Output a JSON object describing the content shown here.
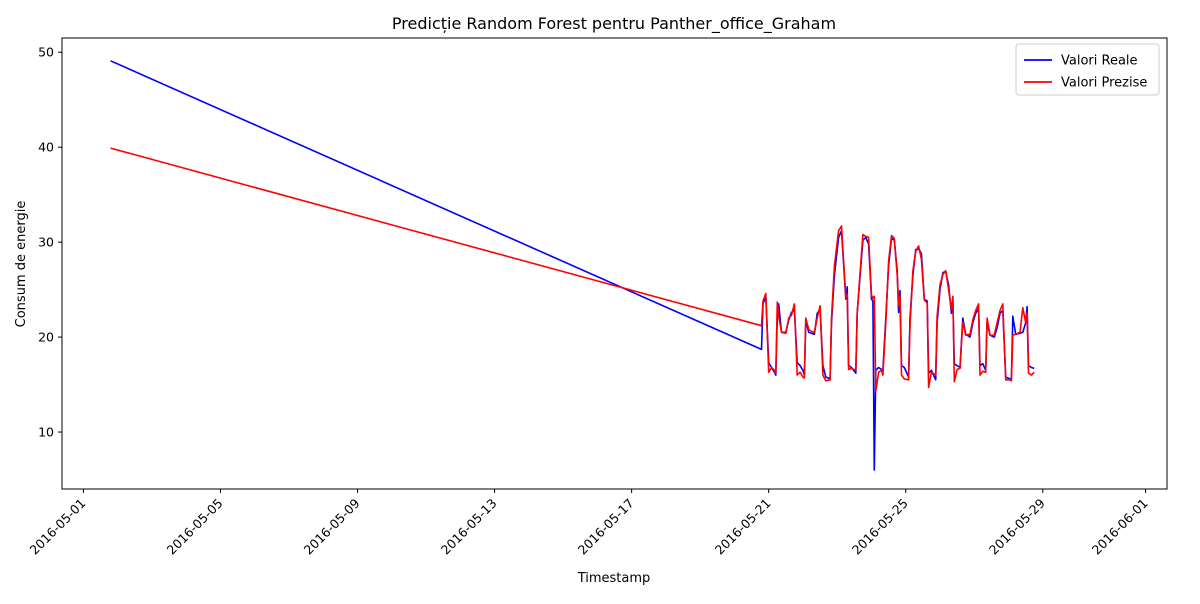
{
  "chart_data": {
    "type": "line",
    "title": "Predicție Random Forest pentru Panther_office_Graham",
    "xlabel": "Timestamp",
    "ylabel": "Consum de energie",
    "x_range": [
      "2016-04-30T09:00",
      "2016-06-01T15:00"
    ],
    "ylim": [
      4,
      51.5
    ],
    "yticks": [
      10,
      20,
      30,
      40,
      50
    ],
    "xticks": [
      "2016-05-01",
      "2016-05-05",
      "2016-05-09",
      "2016-05-13",
      "2016-05-17",
      "2016-05-21",
      "2016-05-25",
      "2016-05-29",
      "2016-06-01"
    ],
    "grid": false,
    "legend_position": "top-right",
    "series": [
      {
        "name": "Valori Reale",
        "color": "#0000ff",
        "points": [
          [
            "2016-05-01T19:00",
            49.1
          ],
          [
            "2016-05-20T19:00",
            18.7
          ],
          [
            "2016-05-20T20:00",
            23.5
          ],
          [
            "2016-05-20T22:00",
            24.3
          ],
          [
            "2016-05-21T00:00",
            17.3
          ],
          [
            "2016-05-21T02:00",
            16.8
          ],
          [
            "2016-05-21T04:00",
            16.3
          ],
          [
            "2016-05-21T05:00",
            16.0
          ],
          [
            "2016-05-21T06:00",
            22.0
          ],
          [
            "2016-05-21T07:00",
            23.5
          ],
          [
            "2016-05-21T09:00",
            20.5
          ],
          [
            "2016-05-21T12:00",
            20.5
          ],
          [
            "2016-05-21T14:00",
            21.8
          ],
          [
            "2016-05-21T16:00",
            22.6
          ],
          [
            "2016-05-21T18:00",
            22.9
          ],
          [
            "2016-05-21T20:00",
            17.3
          ],
          [
            "2016-05-21T22:00",
            17.0
          ],
          [
            "2016-05-22T00:00",
            16.5
          ],
          [
            "2016-05-22T01:00",
            16.0
          ],
          [
            "2016-05-22T02:00",
            21.8
          ],
          [
            "2016-05-22T04:00",
            20.5
          ],
          [
            "2016-05-22T06:00",
            20.4
          ],
          [
            "2016-05-22T08:00",
            20.3
          ],
          [
            "2016-05-22T10:00",
            22.5
          ],
          [
            "2016-05-22T12:00",
            22.9
          ],
          [
            "2016-05-22T14:00",
            17.0
          ],
          [
            "2016-05-22T16:00",
            15.8
          ],
          [
            "2016-05-22T19:00",
            15.6
          ],
          [
            "2016-05-22T20:00",
            21.5
          ],
          [
            "2016-05-22T22:00",
            26.5
          ],
          [
            "2016-05-23T01:00",
            30.5
          ],
          [
            "2016-05-23T03:00",
            31.2
          ],
          [
            "2016-05-23T06:00",
            24.0
          ],
          [
            "2016-05-23T07:00",
            25.3
          ],
          [
            "2016-05-23T08:00",
            17.0
          ],
          [
            "2016-05-23T10:00",
            16.8
          ],
          [
            "2016-05-23T13:00",
            16.2
          ],
          [
            "2016-05-23T14:00",
            22.5
          ],
          [
            "2016-05-23T16:00",
            26.5
          ],
          [
            "2016-05-23T18:00",
            30.2
          ],
          [
            "2016-05-23T20:00",
            30.5
          ],
          [
            "2016-05-23T22:00",
            29.8
          ],
          [
            "2016-05-24T00:00",
            24.0
          ],
          [
            "2016-05-24T01:00",
            23.8
          ],
          [
            "2016-05-24T02:00",
            6.0
          ],
          [
            "2016-05-24T03:00",
            16.5
          ],
          [
            "2016-05-24T05:00",
            16.8
          ],
          [
            "2016-05-24T07:00",
            16.6
          ],
          [
            "2016-05-24T08:00",
            16.5
          ],
          [
            "2016-05-24T10:00",
            22.0
          ],
          [
            "2016-05-24T12:00",
            27.5
          ],
          [
            "2016-05-24T14:00",
            30.4
          ],
          [
            "2016-05-24T16:00",
            30.2
          ],
          [
            "2016-05-24T18:00",
            27.0
          ],
          [
            "2016-05-24T19:00",
            22.6
          ],
          [
            "2016-05-24T20:00",
            24.9
          ],
          [
            "2016-05-24T21:00",
            17.0
          ],
          [
            "2016-05-24T23:00",
            16.8
          ],
          [
            "2016-05-25T02:00",
            15.8
          ],
          [
            "2016-05-25T03:00",
            22.0
          ],
          [
            "2016-05-25T05:00",
            26.5
          ],
          [
            "2016-05-25T07:00",
            29.2
          ],
          [
            "2016-05-25T09:00",
            29.3
          ],
          [
            "2016-05-25T11:00",
            28.8
          ],
          [
            "2016-05-25T13:00",
            24.0
          ],
          [
            "2016-05-25T15:00",
            23.8
          ],
          [
            "2016-05-25T16:00",
            16.2
          ],
          [
            "2016-05-25T18:00",
            16.5
          ],
          [
            "2016-05-25T21:00",
            15.5
          ],
          [
            "2016-05-25T22:00",
            21.5
          ],
          [
            "2016-05-26T00:00",
            25.0
          ],
          [
            "2016-05-26T02:00",
            26.8
          ],
          [
            "2016-05-26T04:00",
            26.9
          ],
          [
            "2016-05-26T06:00",
            25.5
          ],
          [
            "2016-05-26T08:00",
            22.5
          ],
          [
            "2016-05-26T09:00",
            23.8
          ],
          [
            "2016-05-26T10:00",
            17.2
          ],
          [
            "2016-05-26T12:00",
            17.0
          ],
          [
            "2016-05-26T14:00",
            16.8
          ],
          [
            "2016-05-26T16:00",
            22.0
          ],
          [
            "2016-05-26T18:00",
            20.3
          ],
          [
            "2016-05-26T21:00",
            20.0
          ],
          [
            "2016-05-26T23:00",
            21.5
          ],
          [
            "2016-05-27T01:00",
            22.5
          ],
          [
            "2016-05-27T03:00",
            23.0
          ],
          [
            "2016-05-27T04:00",
            17.0
          ],
          [
            "2016-05-27T06:00",
            17.2
          ],
          [
            "2016-05-27T08:00",
            16.5
          ],
          [
            "2016-05-27T09:00",
            21.5
          ],
          [
            "2016-05-27T11:00",
            20.2
          ],
          [
            "2016-05-27T14:00",
            20.0
          ],
          [
            "2016-05-27T16:00",
            21.0
          ],
          [
            "2016-05-27T18:00",
            22.5
          ],
          [
            "2016-05-27T20:00",
            22.8
          ],
          [
            "2016-05-27T22:00",
            15.8
          ],
          [
            "2016-05-28T01:00",
            15.6
          ],
          [
            "2016-05-28T02:00",
            15.5
          ],
          [
            "2016-05-28T03:00",
            22.2
          ],
          [
            "2016-05-28T05:00",
            20.3
          ],
          [
            "2016-05-28T08:00",
            20.4
          ],
          [
            "2016-05-28T10:00",
            20.5
          ],
          [
            "2016-05-28T12:00",
            21.5
          ],
          [
            "2016-05-28T13:00",
            23.2
          ],
          [
            "2016-05-28T14:00",
            17.0
          ],
          [
            "2016-05-28T16:00",
            16.8
          ],
          [
            "2016-05-28T18:00",
            16.7
          ]
        ]
      },
      {
        "name": "Valori Prezise",
        "color": "#ff0000",
        "points": [
          [
            "2016-05-01T19:00",
            39.9
          ],
          [
            "2016-05-20T19:00",
            21.2
          ],
          [
            "2016-05-20T20:00",
            23.8
          ],
          [
            "2016-05-20T22:00",
            24.6
          ],
          [
            "2016-05-21T00:00",
            16.3
          ],
          [
            "2016-05-21T02:00",
            16.8
          ],
          [
            "2016-05-21T04:00",
            16.5
          ],
          [
            "2016-05-21T05:00",
            16.2
          ],
          [
            "2016-05-21T06:00",
            23.7
          ],
          [
            "2016-05-21T07:00",
            22.2
          ],
          [
            "2016-05-21T09:00",
            20.5
          ],
          [
            "2016-05-21T12:00",
            20.4
          ],
          [
            "2016-05-21T14:00",
            22.0
          ],
          [
            "2016-05-21T16:00",
            22.3
          ],
          [
            "2016-05-21T18:00",
            23.5
          ],
          [
            "2016-05-21T20:00",
            16.0
          ],
          [
            "2016-05-21T22:00",
            16.3
          ],
          [
            "2016-05-22T00:00",
            15.8
          ],
          [
            "2016-05-22T01:00",
            15.7
          ],
          [
            "2016-05-22T02:00",
            22.0
          ],
          [
            "2016-05-22T04:00",
            20.8
          ],
          [
            "2016-05-22T06:00",
            20.6
          ],
          [
            "2016-05-22T08:00",
            20.5
          ],
          [
            "2016-05-22T10:00",
            22.0
          ],
          [
            "2016-05-22T12:00",
            23.3
          ],
          [
            "2016-05-22T14:00",
            16.0
          ],
          [
            "2016-05-22T16:00",
            15.4
          ],
          [
            "2016-05-22T19:00",
            15.5
          ],
          [
            "2016-05-22T20:00",
            22.0
          ],
          [
            "2016-05-22T22:00",
            27.5
          ],
          [
            "2016-05-23T01:00",
            31.2
          ],
          [
            "2016-05-23T03:00",
            31.7
          ],
          [
            "2016-05-23T06:00",
            24.2
          ],
          [
            "2016-05-23T07:00",
            24.5
          ],
          [
            "2016-05-23T08:00",
            16.6
          ],
          [
            "2016-05-23T10:00",
            16.7
          ],
          [
            "2016-05-23T13:00",
            16.5
          ],
          [
            "2016-05-23T14:00",
            22.5
          ],
          [
            "2016-05-23T16:00",
            26.8
          ],
          [
            "2016-05-23T18:00",
            30.8
          ],
          [
            "2016-05-23T20:00",
            30.6
          ],
          [
            "2016-05-23T22:00",
            30.5
          ],
          [
            "2016-05-24T00:00",
            24.4
          ],
          [
            "2016-05-24T01:00",
            24.1
          ],
          [
            "2016-05-24T02:00",
            24.3
          ],
          [
            "2016-05-24T03:00",
            14.3
          ],
          [
            "2016-05-24T05:00",
            16.3
          ],
          [
            "2016-05-24T07:00",
            16.5
          ],
          [
            "2016-05-24T08:00",
            16.0
          ],
          [
            "2016-05-24T10:00",
            21.5
          ],
          [
            "2016-05-24T12:00",
            28.0
          ],
          [
            "2016-05-24T14:00",
            30.7
          ],
          [
            "2016-05-24T16:00",
            30.4
          ],
          [
            "2016-05-24T18:00",
            26.5
          ],
          [
            "2016-05-24T19:00",
            23.3
          ],
          [
            "2016-05-24T20:00",
            24.3
          ],
          [
            "2016-05-24T21:00",
            16.0
          ],
          [
            "2016-05-24T23:00",
            15.6
          ],
          [
            "2016-05-25T02:00",
            15.5
          ],
          [
            "2016-05-25T03:00",
            21.2
          ],
          [
            "2016-05-25T05:00",
            27.0
          ],
          [
            "2016-05-25T07:00",
            29.0
          ],
          [
            "2016-05-25T09:00",
            29.6
          ],
          [
            "2016-05-25T11:00",
            28.2
          ],
          [
            "2016-05-25T13:00",
            23.9
          ],
          [
            "2016-05-25T15:00",
            23.6
          ],
          [
            "2016-05-25T16:00",
            14.7
          ],
          [
            "2016-05-25T18:00",
            16.3
          ],
          [
            "2016-05-25T21:00",
            16.0
          ],
          [
            "2016-05-25T22:00",
            22.2
          ],
          [
            "2016-05-26T00:00",
            25.5
          ],
          [
            "2016-05-26T02:00",
            26.6
          ],
          [
            "2016-05-26T04:00",
            27.0
          ],
          [
            "2016-05-26T06:00",
            25.0
          ],
          [
            "2016-05-26T08:00",
            22.9
          ],
          [
            "2016-05-26T09:00",
            24.3
          ],
          [
            "2016-05-26T10:00",
            15.3
          ],
          [
            "2016-05-26T12:00",
            16.6
          ],
          [
            "2016-05-26T14:00",
            16.7
          ],
          [
            "2016-05-26T16:00",
            21.6
          ],
          [
            "2016-05-26T18:00",
            20.2
          ],
          [
            "2016-05-26T21:00",
            20.3
          ],
          [
            "2016-05-26T23:00",
            21.8
          ],
          [
            "2016-05-27T01:00",
            22.8
          ],
          [
            "2016-05-27T03:00",
            23.5
          ],
          [
            "2016-05-27T04:00",
            16.0
          ],
          [
            "2016-05-27T06:00",
            16.4
          ],
          [
            "2016-05-27T08:00",
            16.3
          ],
          [
            "2016-05-27T09:00",
            22.0
          ],
          [
            "2016-05-27T11:00",
            20.2
          ],
          [
            "2016-05-27T14:00",
            20.2
          ],
          [
            "2016-05-27T16:00",
            21.5
          ],
          [
            "2016-05-27T18:00",
            22.8
          ],
          [
            "2016-05-27T20:00",
            23.5
          ],
          [
            "2016-05-27T22:00",
            15.5
          ],
          [
            "2016-05-28T01:00",
            15.5
          ],
          [
            "2016-05-28T02:00",
            15.4
          ],
          [
            "2016-05-28T03:00",
            20.2
          ],
          [
            "2016-05-28T05:00",
            20.3
          ],
          [
            "2016-05-28T08:00",
            20.5
          ],
          [
            "2016-05-28T10:00",
            23.1
          ],
          [
            "2016-05-28T12:00",
            21.5
          ],
          [
            "2016-05-28T13:00",
            22.5
          ],
          [
            "2016-05-28T14:00",
            16.2
          ],
          [
            "2016-05-28T16:00",
            16.0
          ],
          [
            "2016-05-28T18:00",
            16.3
          ]
        ]
      }
    ]
  }
}
